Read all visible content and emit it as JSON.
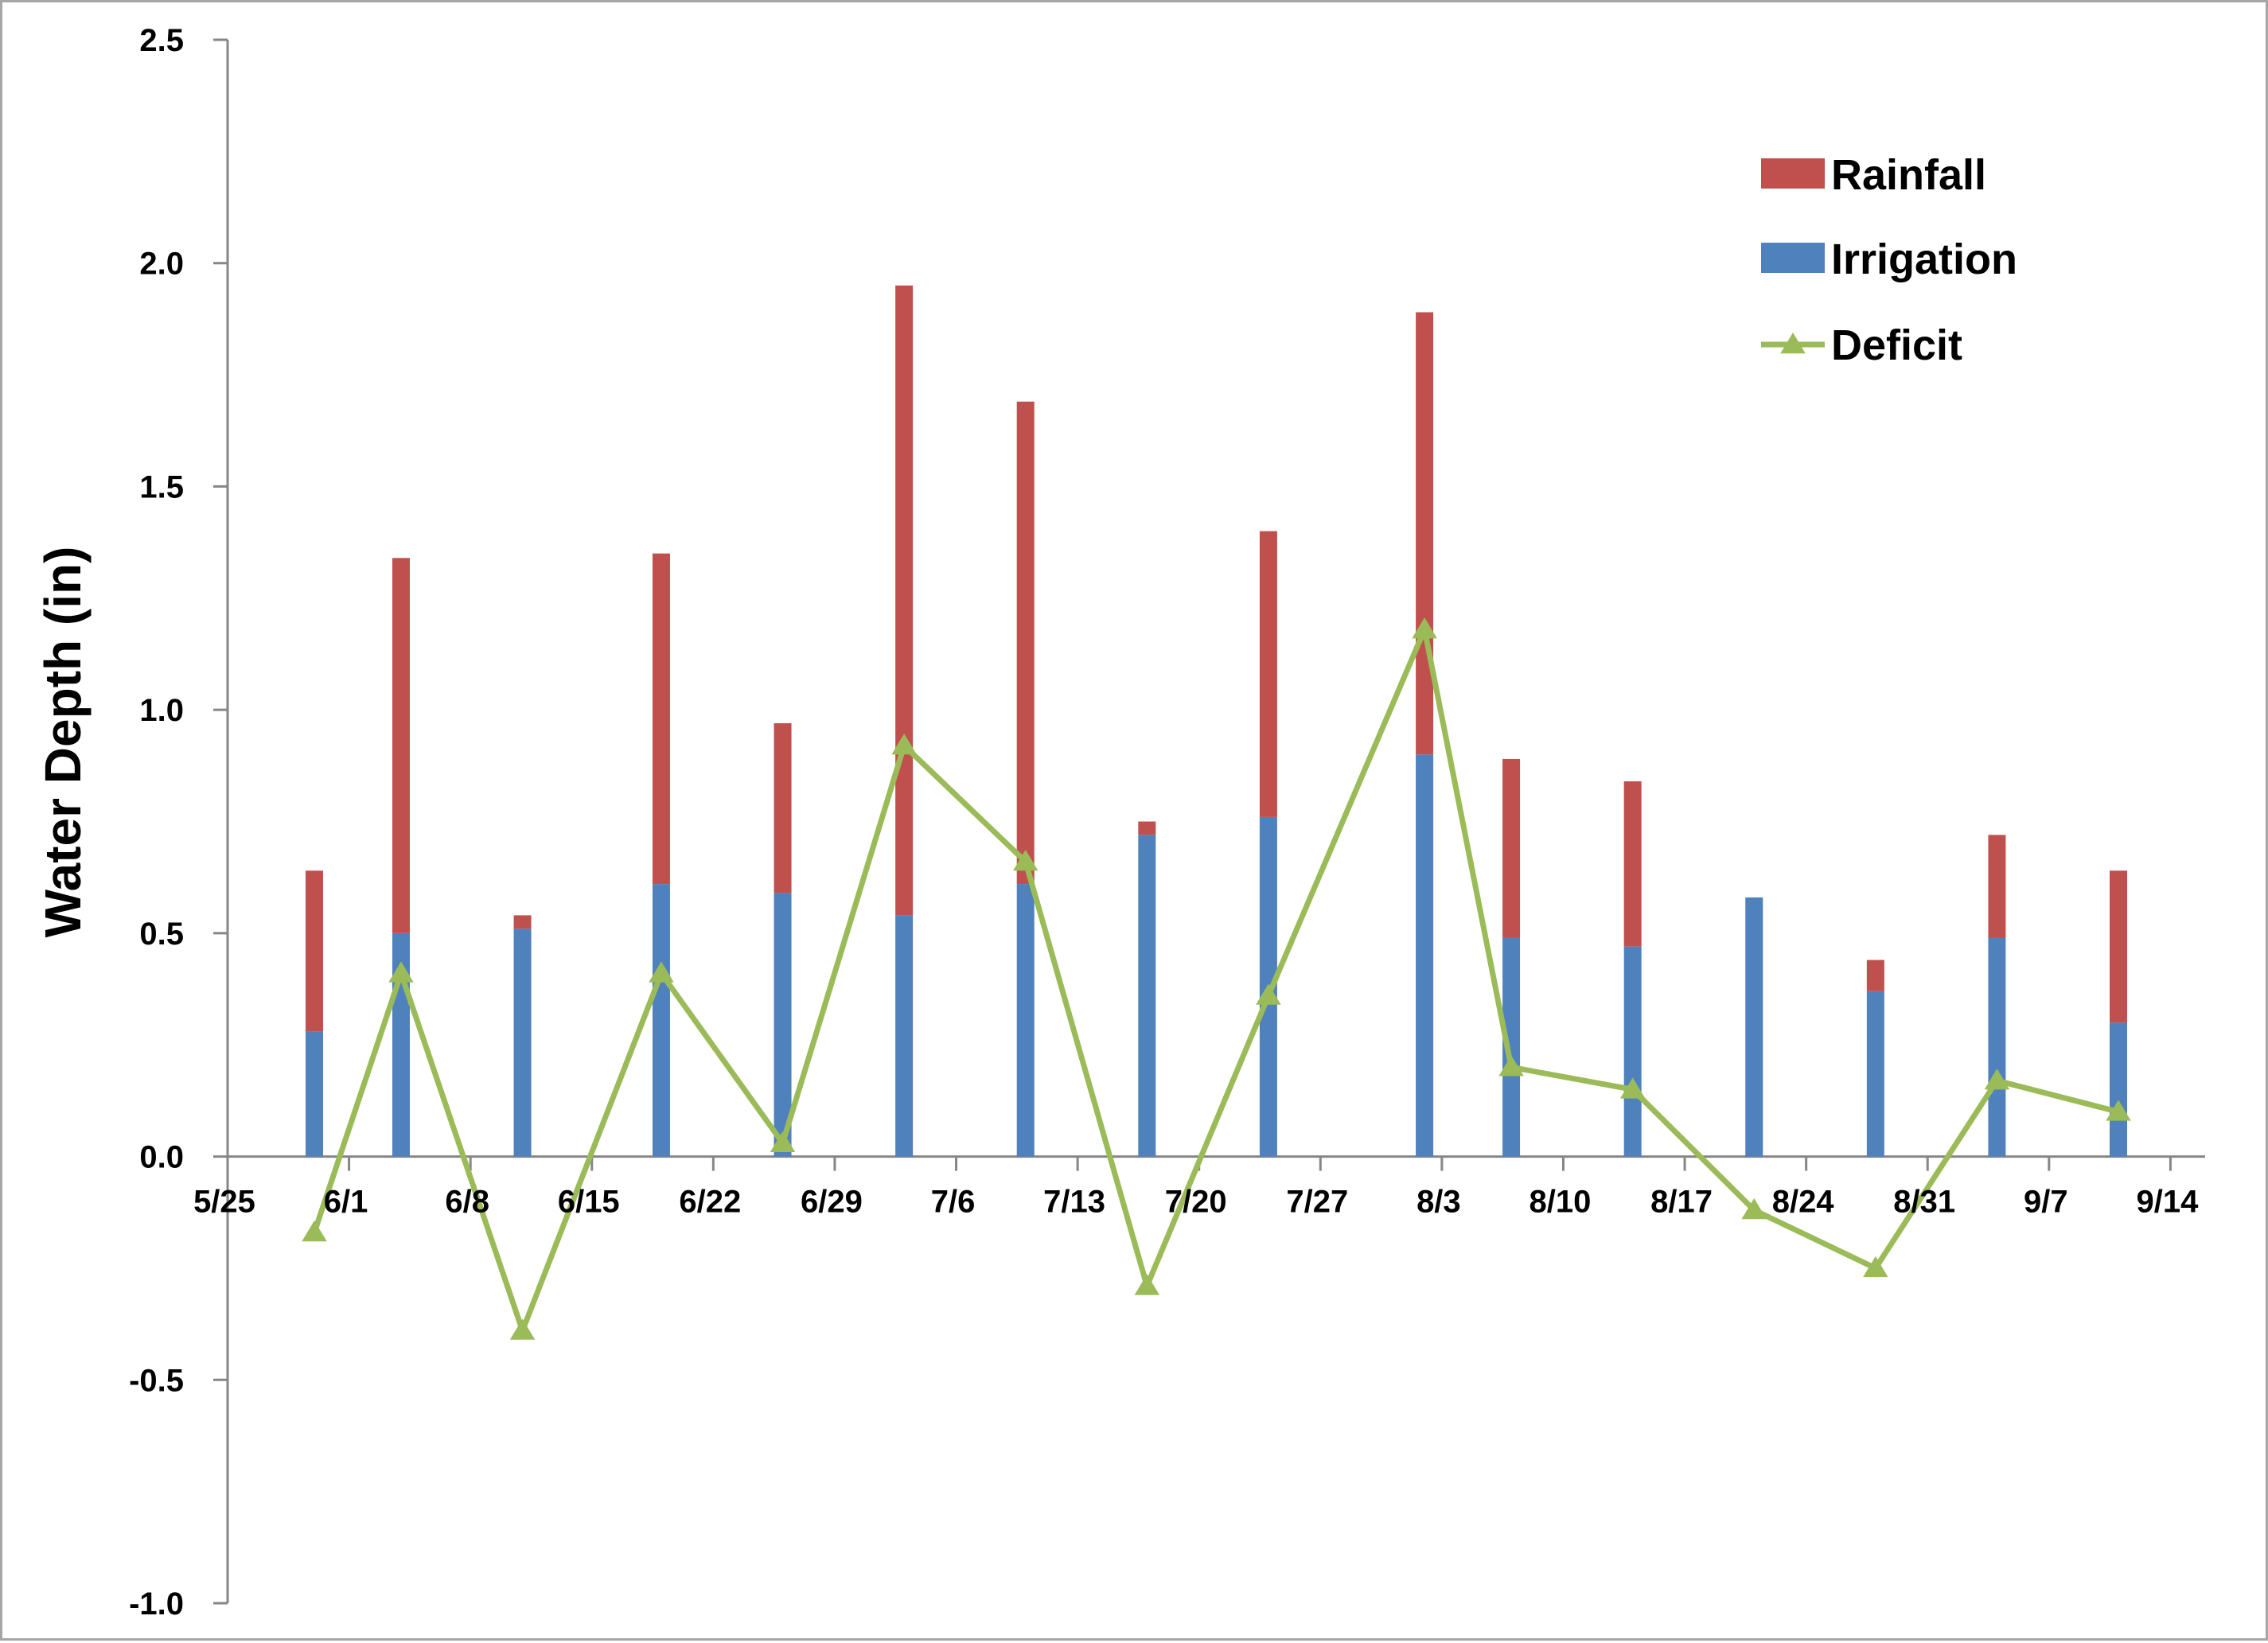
{
  "chart_data": {
    "type": "bar",
    "stacked": true,
    "title": "",
    "xlabel": "",
    "ylabel": "Water Depth (in)",
    "ylim": [
      -1.0,
      2.5
    ],
    "yticks": [
      "2.5",
      "2.0",
      "1.5",
      "1.0",
      "0.5",
      "0.0",
      "-0.5",
      "-1.0"
    ],
    "xlim": [
      "5/25",
      "9/16"
    ],
    "xticks": [
      "5/25",
      "6/1",
      "6/8",
      "6/15",
      "6/22",
      "6/29",
      "7/6",
      "7/13",
      "7/20",
      "7/27",
      "8/3",
      "8/10",
      "8/17",
      "8/24",
      "8/31",
      "9/7",
      "9/14"
    ],
    "grid": false,
    "legend_position": "top-right",
    "series": [
      {
        "name": "Rainfall",
        "kind": "bar",
        "color": "#C0504D",
        "x": [
          "5/30",
          "6/4",
          "6/11",
          "6/19",
          "6/26",
          "7/3",
          "7/10",
          "7/17",
          "7/24",
          "8/2",
          "8/7",
          "8/14",
          "8/21",
          "8/28",
          "9/4",
          "9/11"
        ],
        "values": [
          0.36,
          0.84,
          0.03,
          0.74,
          0.38,
          1.41,
          1.08,
          0.03,
          0.64,
          0.99,
          0.4,
          0.37,
          0.0,
          0.07,
          0.23,
          0.34
        ]
      },
      {
        "name": "Irrigation",
        "kind": "bar",
        "color": "#4F81BD",
        "x": [
          "5/30",
          "6/4",
          "6/11",
          "6/19",
          "6/26",
          "7/3",
          "7/10",
          "7/17",
          "7/24",
          "8/2",
          "8/7",
          "8/14",
          "8/21",
          "8/28",
          "9/4",
          "9/11"
        ],
        "values": [
          0.28,
          0.5,
          0.51,
          0.61,
          0.59,
          0.54,
          0.61,
          0.72,
          0.76,
          0.9,
          0.49,
          0.47,
          0.58,
          0.37,
          0.49,
          0.3
        ]
      },
      {
        "name": "Deficit",
        "kind": "line",
        "marker": "triangle",
        "color": "#9BBB59",
        "x": [
          "5/30",
          "6/4",
          "6/11",
          "6/19",
          "6/26",
          "7/3",
          "7/10",
          "7/17",
          "7/24",
          "8/2",
          "8/7",
          "8/14",
          "8/21",
          "8/28",
          "9/4",
          "9/11"
        ],
        "values": [
          -0.17,
          0.41,
          -0.39,
          0.41,
          0.03,
          0.92,
          0.66,
          -0.29,
          0.36,
          1.18,
          0.2,
          0.15,
          -0.12,
          -0.25,
          0.17,
          0.1
        ]
      }
    ]
  }
}
